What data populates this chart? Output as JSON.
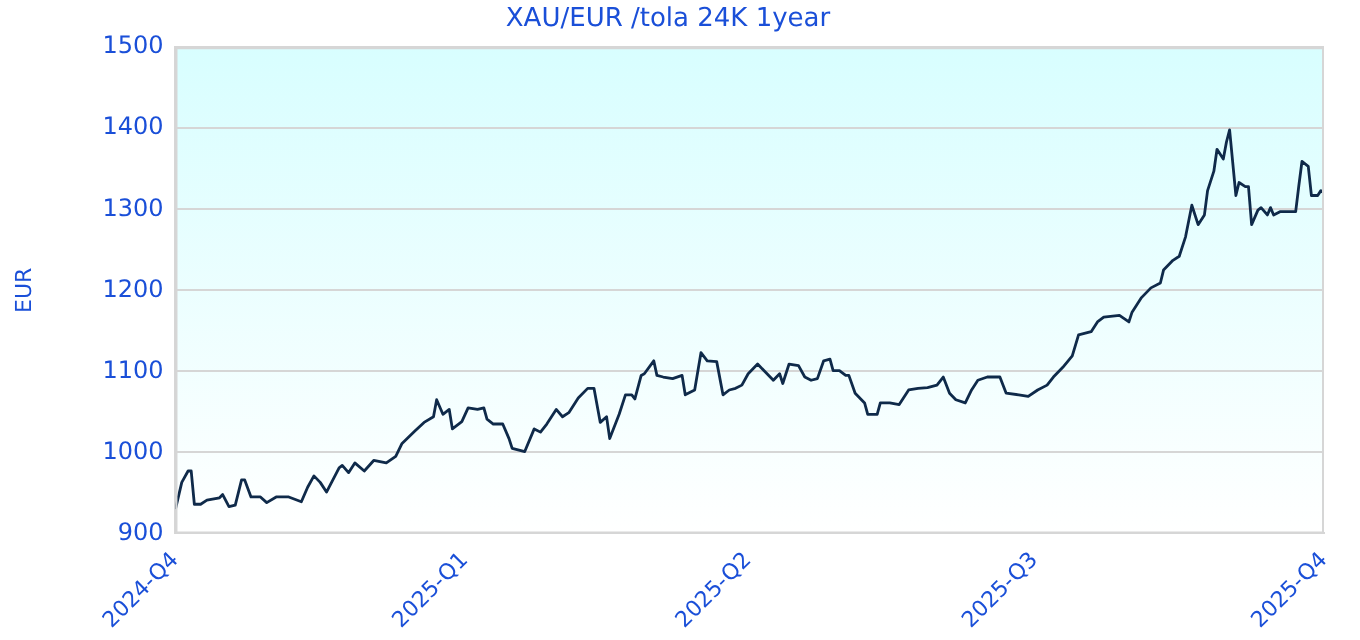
{
  "chart_data": {
    "type": "line",
    "title": "XAU/EUR /tola 24K 1year",
    "ylabel": "EUR",
    "grid": "y",
    "legend": false,
    "marker": "none",
    "line_style": "solid",
    "xlim": [
      "2024-10-01",
      "2025-10-01"
    ],
    "xticks": [
      {
        "value": "2024-10-01",
        "label": "2024-Q4"
      },
      {
        "value": "2025-01-01",
        "label": "2025-Q1"
      },
      {
        "value": "2025-04-01",
        "label": "2025-Q2"
      },
      {
        "value": "2025-07-01",
        "label": "2025-Q3"
      },
      {
        "value": "2025-10-01",
        "label": "2025-Q4"
      }
    ],
    "ylim": [
      900,
      1500
    ],
    "yticks": [
      900,
      1000,
      1100,
      1200,
      1300,
      1400,
      1500
    ],
    "series": [
      {
        "color": "#0f2a4a",
        "x": [
          "2024-10-01",
          "2024-10-03",
          "2024-10-05",
          "2024-10-06",
          "2024-10-07",
          "2024-10-09",
          "2024-10-11",
          "2024-10-15",
          "2024-10-16",
          "2024-10-18",
          "2024-10-20",
          "2024-10-22",
          "2024-10-23",
          "2024-10-25",
          "2024-10-28",
          "2024-10-30",
          "2024-11-02",
          "2024-11-06",
          "2024-11-10",
          "2024-11-12",
          "2024-11-14",
          "2024-11-16",
          "2024-11-18",
          "2024-11-22",
          "2024-11-23",
          "2024-11-25",
          "2024-11-27",
          "2024-11-30",
          "2024-12-03",
          "2024-12-07",
          "2024-12-10",
          "2024-12-12",
          "2024-12-16",
          "2024-12-19",
          "2024-12-22",
          "2024-12-23",
          "2024-12-25",
          "2024-12-27",
          "2024-12-28",
          "2024-12-31",
          "2025-01-02",
          "2025-01-05",
          "2025-01-07",
          "2025-01-08",
          "2025-01-10",
          "2025-01-13",
          "2025-01-15",
          "2025-01-16",
          "2025-01-20",
          "2025-01-23",
          "2025-01-25",
          "2025-01-27",
          "2025-01-30",
          "2025-02-01",
          "2025-02-03",
          "2025-02-06",
          "2025-02-09",
          "2025-02-11",
          "2025-02-13",
          "2025-02-15",
          "2025-02-16",
          "2025-02-19",
          "2025-02-21",
          "2025-02-23",
          "2025-02-24",
          "2025-02-26",
          "2025-02-27",
          "2025-03-02",
          "2025-03-03",
          "2025-03-05",
          "2025-03-08",
          "2025-03-11",
          "2025-03-12",
          "2025-03-15",
          "2025-03-17",
          "2025-03-19",
          "2025-03-22",
          "2025-03-24",
          "2025-03-26",
          "2025-03-28",
          "2025-03-30",
          "2025-04-01",
          "2025-04-04",
          "2025-04-06",
          "2025-04-08",
          "2025-04-09",
          "2025-04-11",
          "2025-04-12",
          "2025-04-14",
          "2025-04-17",
          "2025-04-19",
          "2025-04-21",
          "2025-04-23",
          "2025-04-25",
          "2025-04-27",
          "2025-04-28",
          "2025-04-30",
          "2025-05-02",
          "2025-05-03",
          "2025-05-05",
          "2025-05-08",
          "2025-05-09",
          "2025-05-12",
          "2025-05-13",
          "2025-05-16",
          "2025-05-19",
          "2025-05-22",
          "2025-05-25",
          "2025-05-28",
          "2025-05-31",
          "2025-06-02",
          "2025-06-04",
          "2025-06-06",
          "2025-06-09",
          "2025-06-11",
          "2025-06-13",
          "2025-06-16",
          "2025-06-20",
          "2025-06-22",
          "2025-06-26",
          "2025-06-29",
          "2025-07-02",
          "2025-07-05",
          "2025-07-07",
          "2025-07-10",
          "2025-07-13",
          "2025-07-15",
          "2025-07-19",
          "2025-07-21",
          "2025-07-23",
          "2025-07-28",
          "2025-07-31",
          "2025-08-01",
          "2025-08-04",
          "2025-08-07",
          "2025-08-10",
          "2025-08-11",
          "2025-08-14",
          "2025-08-16",
          "2025-08-18",
          "2025-08-20",
          "2025-08-22",
          "2025-08-24",
          "2025-08-25",
          "2025-08-27",
          "2025-08-28",
          "2025-08-30",
          "2025-08-31",
          "2025-09-01",
          "2025-09-03",
          "2025-09-04",
          "2025-09-06",
          "2025-09-07",
          "2025-09-08",
          "2025-09-10",
          "2025-09-11",
          "2025-09-13",
          "2025-09-14",
          "2025-09-15",
          "2025-09-17",
          "2025-09-20",
          "2025-09-22",
          "2025-09-23",
          "2025-09-24",
          "2025-09-26",
          "2025-09-27",
          "2025-09-29",
          "2025-09-30",
          "2025-10-01"
        ],
        "values": [
          930,
          963,
          977,
          977,
          936,
          936,
          941,
          944,
          948,
          933,
          935,
          966,
          966,
          945,
          945,
          938,
          945,
          945,
          939,
          957,
          971,
          963,
          951,
          981,
          984,
          975,
          987,
          977,
          990,
          987,
          995,
          1011,
          1026,
          1037,
          1044,
          1065,
          1047,
          1053,
          1029,
          1038,
          1055,
          1053,
          1055,
          1041,
          1035,
          1035,
          1017,
          1005,
          1001,
          1029,
          1025,
          1035,
          1053,
          1044,
          1049,
          1067,
          1079,
          1079,
          1037,
          1044,
          1017,
          1047,
          1071,
          1071,
          1066,
          1095,
          1097,
          1113,
          1095,
          1093,
          1091,
          1095,
          1071,
          1077,
          1123,
          1113,
          1112,
          1071,
          1077,
          1079,
          1083,
          1097,
          1109,
          1101,
          1093,
          1089,
          1097,
          1085,
          1109,
          1107,
          1093,
          1089,
          1091,
          1113,
          1115,
          1101,
          1101,
          1095,
          1095,
          1073,
          1061,
          1047,
          1047,
          1061,
          1061,
          1059,
          1077,
          1079,
          1080,
          1083,
          1093,
          1073,
          1065,
          1061,
          1077,
          1089,
          1093,
          1093,
          1073,
          1071,
          1069,
          1077,
          1083,
          1093,
          1105,
          1119,
          1145,
          1149,
          1161,
          1167,
          1169,
          1161,
          1173,
          1191,
          1203,
          1209,
          1225,
          1237,
          1242,
          1266,
          1305,
          1281,
          1293,
          1323,
          1347,
          1374,
          1362,
          1383,
          1398,
          1317,
          1333,
          1328,
          1328,
          1281,
          1299,
          1302,
          1293,
          1302,
          1293,
          1297,
          1297,
          1297,
          1329,
          1359,
          1353,
          1317,
          1317,
          1323,
          1320
        ]
      }
    ]
  }
}
